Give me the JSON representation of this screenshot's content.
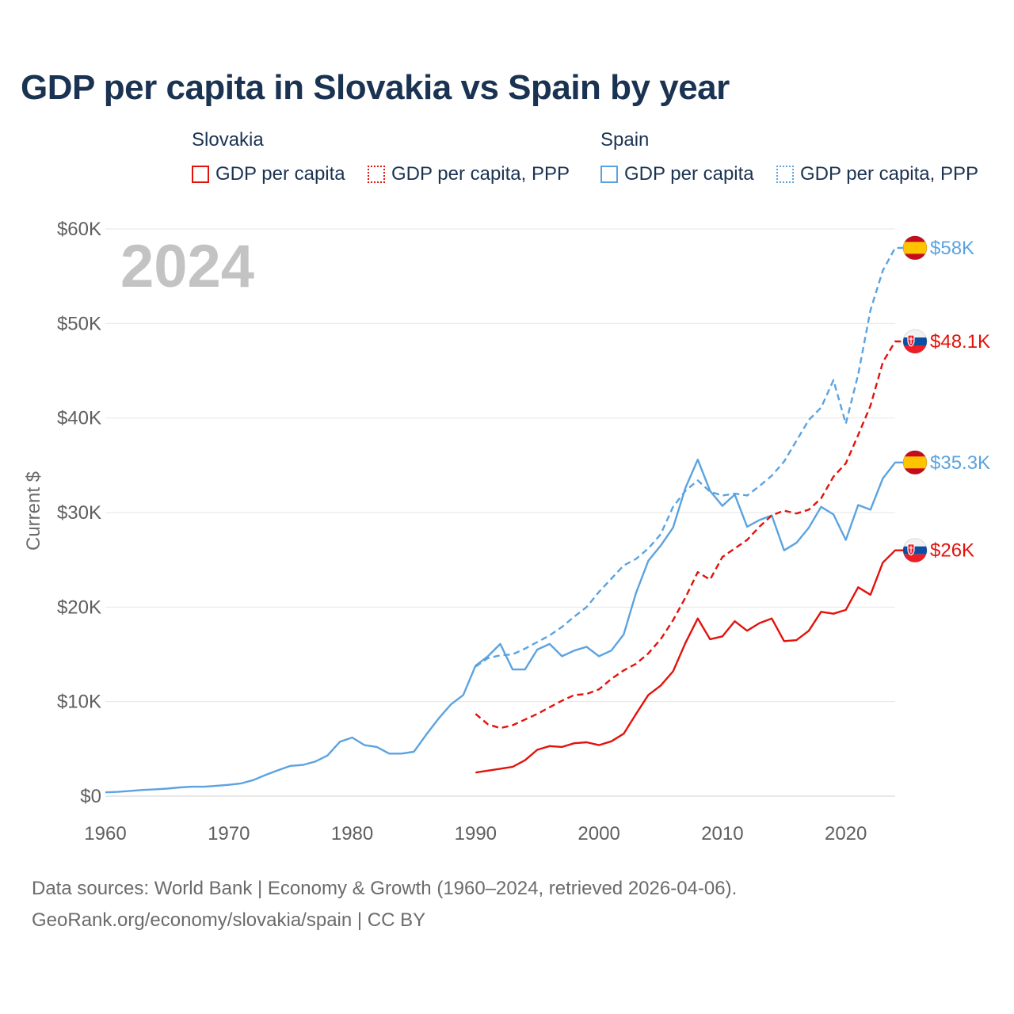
{
  "title": "GDP per capita in Slovakia vs Spain by year",
  "legend": {
    "groups": [
      {
        "name": "Slovakia",
        "color": "#e3120b",
        "items": [
          {
            "label": "GDP per capita",
            "style": "solid"
          },
          {
            "label": "GDP per capita, PPP",
            "style": "dotted"
          }
        ]
      },
      {
        "name": "Spain",
        "color": "#5ba3e0",
        "items": [
          {
            "label": "GDP per capita",
            "style": "solid"
          },
          {
            "label": "GDP per capita, PPP",
            "style": "dotted"
          }
        ]
      }
    ]
  },
  "footer": {
    "line1": "Data sources: World Bank | Economy & Growth (1960–2024, retrieved 2026-04-06).",
    "line2": "GeoRank.org/economy/slovakia/spain | CC BY"
  },
  "chart_data": {
    "type": "line",
    "title": "GDP per capita in Slovakia vs Spain by year",
    "xlabel": "",
    "ylabel": "Current $",
    "year_label": "2024",
    "xlim": [
      1960,
      2024
    ],
    "ylim": [
      0,
      60000
    ],
    "x_ticks": [
      1960,
      1970,
      1980,
      1990,
      2000,
      2010,
      2020
    ],
    "y_ticks": [
      0,
      10000,
      20000,
      30000,
      40000,
      50000,
      60000
    ],
    "y_tick_labels": [
      "$0",
      "$10K",
      "$20K",
      "$30K",
      "$40K",
      "$50K",
      "$60K"
    ],
    "grid": true,
    "series": [
      {
        "name": "Spain GDP per capita",
        "country": "Spain",
        "color": "#5ba3e0",
        "dash": "solid",
        "start_year": 1960,
        "end_label": "$35.3K",
        "flag": "spain-flag-icon",
        "values": [
          400,
          450,
          550,
          650,
          720,
          800,
          920,
          1000,
          1000,
          1100,
          1200,
          1350,
          1700,
          2250,
          2750,
          3200,
          3300,
          3650,
          4300,
          5750,
          6200,
          5400,
          5200,
          4500,
          4500,
          4700,
          6500,
          8200,
          9700,
          10700,
          13800,
          14800,
          16100,
          13400,
          13400,
          15500,
          16100,
          14800,
          15400,
          15800,
          14800,
          15400,
          17100,
          21500,
          24900,
          26500,
          28400,
          32600,
          35600,
          32300,
          30700,
          31900,
          28500,
          29200,
          29700,
          26000,
          26800,
          28400,
          30600,
          29800,
          27100,
          30800,
          30300,
          33600,
          35300
        ]
      },
      {
        "name": "Spain GDP per capita, PPP",
        "country": "Spain",
        "color": "#5ba3e0",
        "dash": "dashed",
        "start_year": 1990,
        "end_label": "$58K",
        "flag": "spain-flag-icon",
        "values": [
          13700,
          14600,
          14900,
          15000,
          15600,
          16300,
          17000,
          17900,
          19000,
          20000,
          21600,
          23000,
          24400,
          25100,
          26200,
          27700,
          30600,
          32300,
          33400,
          32200,
          31800,
          32000,
          31800,
          32800,
          33900,
          35400,
          37600,
          39800,
          41100,
          44000,
          39400,
          44600,
          51400,
          55600,
          58000
        ]
      },
      {
        "name": "Slovakia GDP per capita",
        "country": "Slovakia",
        "color": "#e3120b",
        "dash": "solid",
        "start_year": 1990,
        "end_label": "$26K",
        "flag": "slovakia-flag-icon",
        "values": [
          2500,
          2700,
          2900,
          3100,
          3800,
          4900,
          5300,
          5200,
          5600,
          5700,
          5400,
          5800,
          6600,
          8700,
          10700,
          11700,
          13200,
          16200,
          18800,
          16600,
          16900,
          18500,
          17500,
          18300,
          18800,
          16400,
          16500,
          17500,
          19500,
          19300,
          19700,
          22100,
          21300,
          24700,
          26000
        ]
      },
      {
        "name": "Slovakia GDP per capita, PPP",
        "country": "Slovakia",
        "color": "#e3120b",
        "dash": "dashed",
        "start_year": 1990,
        "end_label": "$48.1K",
        "flag": "slovakia-flag-icon",
        "values": [
          8700,
          7600,
          7200,
          7500,
          8100,
          8700,
          9400,
          10100,
          10700,
          10800,
          11300,
          12400,
          13300,
          14000,
          15100,
          16600,
          18600,
          21000,
          23700,
          22900,
          25300,
          26200,
          27100,
          28500,
          29700,
          30200,
          29900,
          30300,
          31500,
          33800,
          35200,
          38200,
          41300,
          45900,
          48100
        ]
      }
    ]
  }
}
